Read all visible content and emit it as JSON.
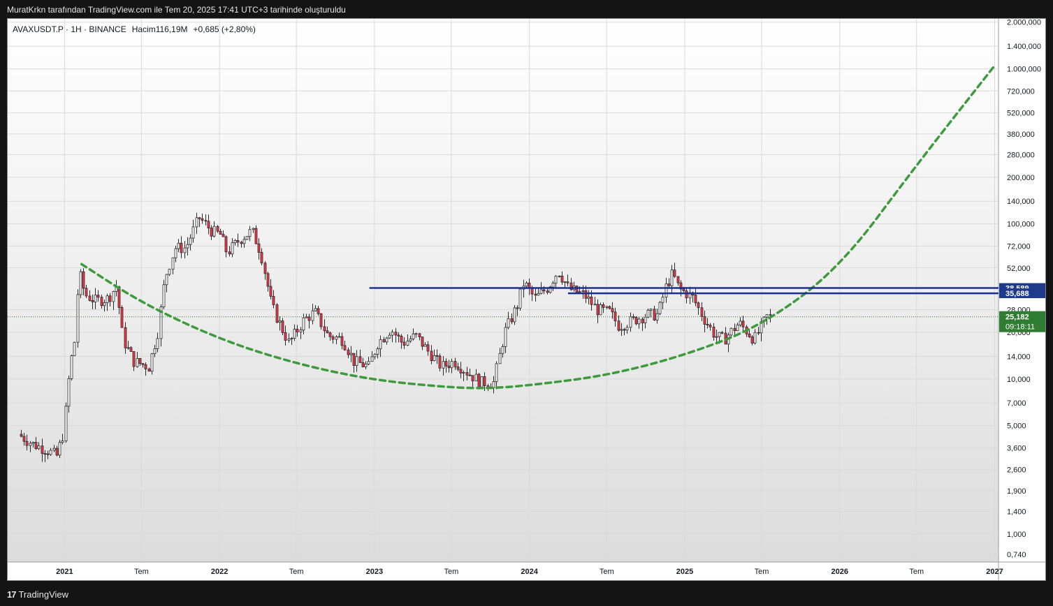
{
  "header": {
    "attribution": "MuratKrkn tarafından TradingView.com ile Tem 20, 2025 17:41 UTC+3 tarihinde oluşturuldu"
  },
  "footer": {
    "brand": "TradingView",
    "brand_mark": "17"
  },
  "colors": {
    "up": "#089981",
    "down": "#f23645",
    "candle": "#2a2a2a",
    "curve": "#3d9a3d",
    "level_line": "#1a2f8f",
    "level_label_bg": "#1e3a8a",
    "price_label_bg": "#2e7d32"
  },
  "chart_data": {
    "type": "candlestick",
    "symbol_info": {
      "symbol": "AVAXUSDT.P · 1H · BINANCE",
      "volume_label": "Hacim",
      "volume_value": "116,19M",
      "change": "+0,685 (+2,80%)"
    },
    "scale": "log",
    "ylim": [
      0.66,
      2.1
    ],
    "xlim": [
      "2020-08-20",
      "2027-01-10"
    ],
    "y_ticks": [
      {
        "value": 1.4,
        "label": "1.400,000"
      },
      {
        "value": 1.0,
        "label": "1.000,000"
      },
      {
        "value": 0.72,
        "label": "720,000"
      },
      {
        "value": 0.52,
        "label": "520,000"
      },
      {
        "value": 0.38,
        "label": "380,000"
      },
      {
        "value": 0.28,
        "label": "280,000"
      },
      {
        "value": 0.2,
        "label": "200,000"
      },
      {
        "value": 0.14,
        "label": "140,000"
      },
      {
        "value": 0.1,
        "label": "100,000"
      },
      {
        "value": 0.072,
        "label": "72,000"
      },
      {
        "value": 0.052,
        "label": "52,000"
      },
      {
        "value": 0.028,
        "label": "28,000"
      },
      {
        "value": 0.02,
        "label": "20,000"
      },
      {
        "value": 0.014,
        "label": "14,000"
      },
      {
        "value": 0.01,
        "label": "10,000"
      },
      {
        "value": 0.007,
        "label": "7,000"
      },
      {
        "value": 0.005,
        "label": "5,000"
      },
      {
        "value": 0.0036,
        "label": "3,600"
      },
      {
        "value": 0.0026,
        "label": "2,600"
      },
      {
        "value": 0.0019,
        "label": "1,900"
      },
      {
        "value": 0.0014,
        "label": "1,400"
      },
      {
        "value": 0.001,
        "label": "1,000"
      },
      {
        "value": 0.00074,
        "label": "0,740"
      },
      {
        "value": 2.0,
        "label": "2.000,000"
      }
    ],
    "x_ticks": [
      {
        "date": "2021-01-01",
        "label": "2021",
        "bold": true
      },
      {
        "date": "2021-07-01",
        "label": "Tem",
        "bold": false
      },
      {
        "date": "2022-01-01",
        "label": "2022",
        "bold": true
      },
      {
        "date": "2022-07-01",
        "label": "Tem",
        "bold": false
      },
      {
        "date": "2023-01-01",
        "label": "2023",
        "bold": true
      },
      {
        "date": "2023-07-01",
        "label": "Tem",
        "bold": false
      },
      {
        "date": "2024-01-01",
        "label": "2024",
        "bold": true
      },
      {
        "date": "2024-07-01",
        "label": "Tem",
        "bold": false
      },
      {
        "date": "2025-01-01",
        "label": "2025",
        "bold": true
      },
      {
        "date": "2025-07-01",
        "label": "Tem",
        "bold": false
      },
      {
        "date": "2026-01-01",
        "label": "2026",
        "bold": true
      },
      {
        "date": "2026-07-01",
        "label": "Tem",
        "bold": false
      },
      {
        "date": "2027-01-01",
        "label": "2027",
        "bold": true
      }
    ],
    "price_path": [
      [
        "2020-09-20",
        0.0044
      ],
      [
        "2020-10-25",
        0.0038
      ],
      [
        "2020-11-25",
        0.0035
      ],
      [
        "2020-12-20",
        0.0032
      ],
      [
        "2021-01-05",
        0.0045
      ],
      [
        "2021-01-20",
        0.012
      ],
      [
        "2021-02-01",
        0.018
      ],
      [
        "2021-02-10",
        0.05
      ],
      [
        "2021-02-25",
        0.035
      ],
      [
        "2021-03-20",
        0.032
      ],
      [
        "2021-04-20",
        0.033
      ],
      [
        "2021-05-10",
        0.04
      ],
      [
        "2021-05-25",
        0.018
      ],
      [
        "2021-06-20",
        0.013
      ],
      [
        "2021-07-25",
        0.012
      ],
      [
        "2021-08-15",
        0.02
      ],
      [
        "2021-09-01",
        0.045
      ],
      [
        "2021-09-25",
        0.07
      ],
      [
        "2021-10-20",
        0.07
      ],
      [
        "2021-11-20",
        0.11
      ],
      [
        "2021-12-20",
        0.09
      ],
      [
        "2022-01-10",
        0.085
      ],
      [
        "2022-01-25",
        0.065
      ],
      [
        "2022-02-25",
        0.08
      ],
      [
        "2022-03-25",
        0.09
      ],
      [
        "2022-04-15",
        0.065
      ],
      [
        "2022-05-10",
        0.03
      ],
      [
        "2022-05-25",
        0.024
      ],
      [
        "2022-06-20",
        0.017
      ],
      [
        "2022-07-25",
        0.024
      ],
      [
        "2022-08-20",
        0.027
      ],
      [
        "2022-09-20",
        0.019
      ],
      [
        "2022-10-25",
        0.018
      ],
      [
        "2022-11-20",
        0.013
      ],
      [
        "2022-12-25",
        0.012
      ],
      [
        "2023-01-15",
        0.017
      ],
      [
        "2023-02-15",
        0.021
      ],
      [
        "2023-03-15",
        0.017
      ],
      [
        "2023-04-15",
        0.019
      ],
      [
        "2023-05-15",
        0.015
      ],
      [
        "2023-06-15",
        0.012
      ],
      [
        "2023-07-15",
        0.013
      ],
      [
        "2023-08-15",
        0.011
      ],
      [
        "2023-09-15",
        0.0095
      ],
      [
        "2023-10-15",
        0.0095
      ],
      [
        "2023-11-10",
        0.02
      ],
      [
        "2023-12-10",
        0.03
      ],
      [
        "2023-12-25",
        0.042
      ],
      [
        "2024-01-20",
        0.033
      ],
      [
        "2024-02-20",
        0.039
      ],
      [
        "2024-03-15",
        0.05
      ],
      [
        "2024-04-10",
        0.038
      ],
      [
        "2024-05-15",
        0.035
      ],
      [
        "2024-06-15",
        0.028
      ],
      [
        "2024-07-15",
        0.027
      ],
      [
        "2024-08-05",
        0.022
      ],
      [
        "2024-09-10",
        0.024
      ],
      [
        "2024-10-10",
        0.026
      ],
      [
        "2024-11-05",
        0.026
      ],
      [
        "2024-11-25",
        0.04
      ],
      [
        "2024-12-10",
        0.048
      ],
      [
        "2024-12-25",
        0.038
      ],
      [
        "2025-01-25",
        0.034
      ],
      [
        "2025-02-20",
        0.025
      ],
      [
        "2025-03-20",
        0.019
      ],
      [
        "2025-04-10",
        0.018
      ],
      [
        "2025-05-15",
        0.023
      ],
      [
        "2025-06-20",
        0.018
      ],
      [
        "2025-07-20",
        0.0252
      ]
    ],
    "curve_points": [
      [
        "2021-02-10",
        0.055
      ],
      [
        "2021-07-01",
        0.031
      ],
      [
        "2022-01-01",
        0.018
      ],
      [
        "2022-07-01",
        0.0125
      ],
      [
        "2023-01-01",
        0.0098
      ],
      [
        "2023-07-01",
        0.0088
      ],
      [
        "2023-10-01",
        0.0087
      ],
      [
        "2024-01-01",
        0.0091
      ],
      [
        "2024-07-01",
        0.0105
      ],
      [
        "2025-01-01",
        0.0142
      ],
      [
        "2025-07-01",
        0.022
      ],
      [
        "2026-01-01",
        0.052
      ],
      [
        "2026-07-01",
        0.24
      ],
      [
        "2027-01-01",
        1.05
      ]
    ],
    "levels": [
      {
        "value": 0.038589,
        "label": "38,589",
        "start": "2022-12-20"
      },
      {
        "value": 0.035688,
        "label": "35,688",
        "start": "2024-04-01"
      }
    ],
    "current_price": {
      "value": 0.025182,
      "label": "25,182",
      "countdown": "09:18:11"
    }
  }
}
